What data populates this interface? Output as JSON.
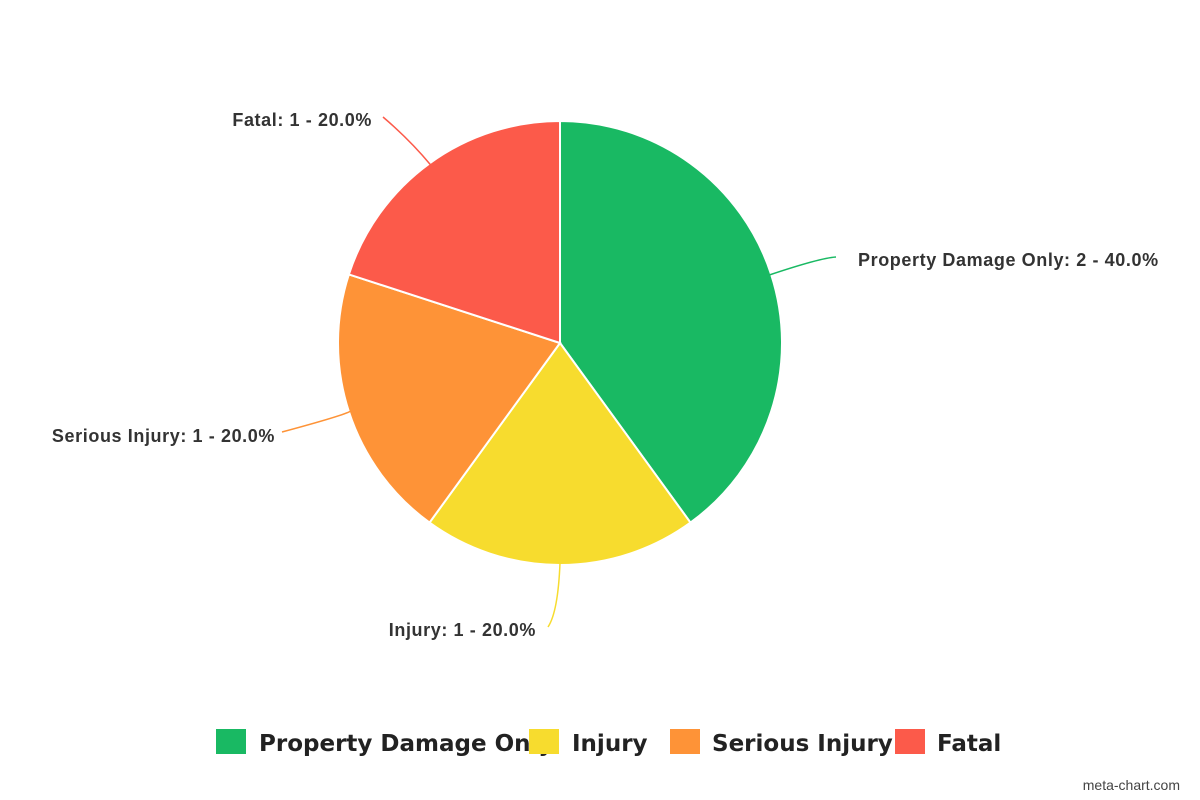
{
  "chart_data": {
    "type": "pie",
    "slices": [
      {
        "name": "Property Damage Only",
        "value": 2,
        "percent": 40.0,
        "label": "Property Damage Only: 2 - 40.0%",
        "color": "#19B963"
      },
      {
        "name": "Injury",
        "value": 1,
        "percent": 20.0,
        "label": "Injury: 1 - 20.0%",
        "color": "#F7DC2E"
      },
      {
        "name": "Serious Injury",
        "value": 1,
        "percent": 20.0,
        "label": "Serious Injury: 1 - 20.0%",
        "color": "#FE9337"
      },
      {
        "name": "Fatal",
        "value": 1,
        "percent": 20.0,
        "label": "Fatal: 1 - 20.0%",
        "color": "#FC5A4A"
      }
    ],
    "legend": {
      "position": "bottom",
      "entries": [
        "Property Damage Only",
        "Injury",
        "Serious Injury",
        "Fatal"
      ]
    }
  },
  "credit": "meta-chart.com"
}
